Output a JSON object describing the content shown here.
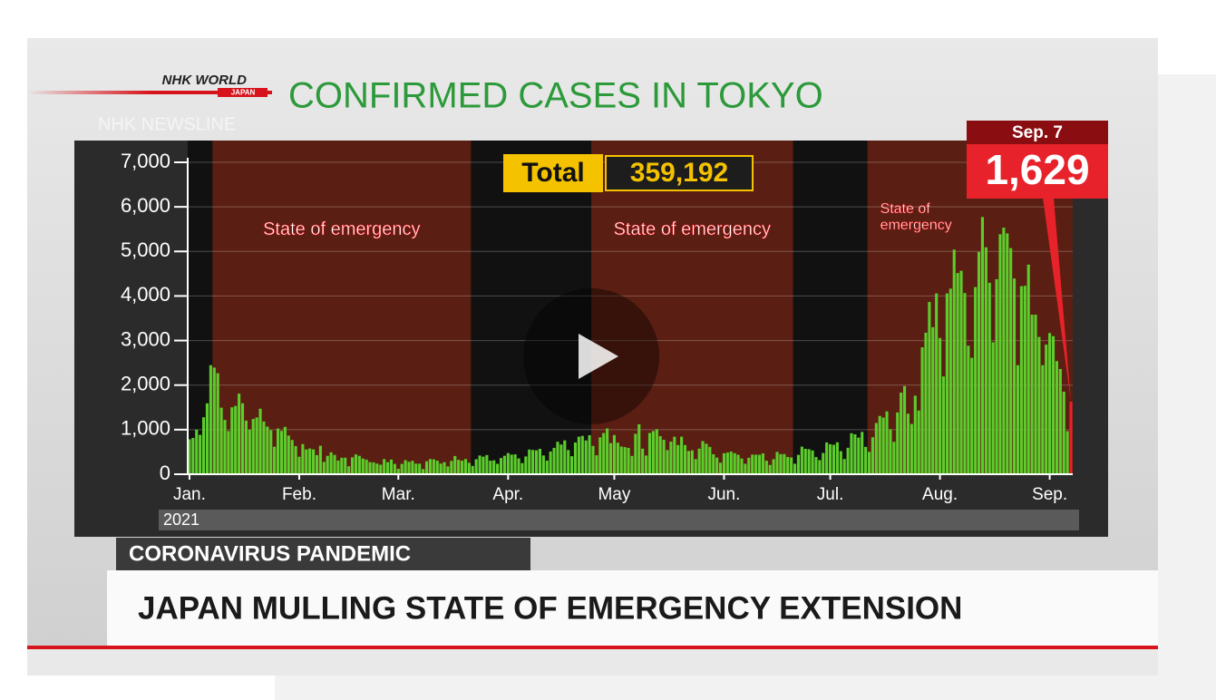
{
  "header": {
    "brand": "NHK WORLD",
    "brand_sub": "JAPAN",
    "program": "NHK NEWSLINE"
  },
  "chart_data": {
    "type": "bar",
    "title": "CONFIRMED CASES IN TOKYO",
    "year_label": "2021",
    "total_label": "Total",
    "total_value": "359,192",
    "callout": {
      "date": "Sep. 7",
      "value_label": "1,629",
      "color": "#e8222a"
    },
    "color": "#5ccd2c",
    "ylim": [
      0,
      7000
    ],
    "yticks": [
      0,
      {
        "value": 1000,
        "label": "1,000"
      },
      {
        "value": 2000,
        "label": "2,000"
      },
      {
        "value": 3000,
        "label": "3,000"
      },
      {
        "value": 4000,
        "label": "4,000"
      },
      {
        "value": 5000,
        "label": "5,000"
      },
      {
        "value": 6000,
        "label": "6,000"
      },
      {
        "value": 7000,
        "label": "7,000"
      }
    ],
    "grid": true,
    "bands": [
      {
        "start": 7,
        "end": 80,
        "label": "State of emergency"
      },
      {
        "start": 114,
        "end": 171,
        "label": "State of emergency"
      },
      {
        "start": 192,
        "end": 250,
        "label": "State of\nemergency"
      }
    ],
    "categories": [
      "Jan.",
      null,
      null,
      null,
      null,
      null,
      null,
      null,
      null,
      null,
      null,
      null,
      null,
      null,
      null,
      null,
      null,
      null,
      null,
      null,
      null,
      null,
      null,
      null,
      null,
      null,
      null,
      null,
      null,
      null,
      null,
      "Feb.",
      null,
      null,
      null,
      null,
      null,
      null,
      null,
      null,
      null,
      null,
      null,
      null,
      null,
      null,
      null,
      null,
      null,
      null,
      null,
      null,
      null,
      null,
      null,
      null,
      null,
      null,
      null,
      "Mar.",
      null,
      null,
      null,
      null,
      null,
      null,
      null,
      null,
      null,
      null,
      null,
      null,
      null,
      null,
      null,
      null,
      null,
      null,
      null,
      null,
      null,
      null,
      null,
      null,
      null,
      null,
      null,
      null,
      null,
      null,
      "Apr.",
      null,
      null,
      null,
      null,
      null,
      null,
      null,
      null,
      null,
      null,
      null,
      null,
      null,
      null,
      null,
      null,
      null,
      null,
      null,
      null,
      null,
      null,
      null,
      null,
      null,
      null,
      null,
      null,
      null,
      "May",
      null,
      null,
      null,
      null,
      null,
      null,
      null,
      null,
      null,
      null,
      null,
      null,
      null,
      null,
      null,
      null,
      null,
      null,
      null,
      null,
      null,
      null,
      null,
      null,
      null,
      null,
      null,
      null,
      null,
      null,
      "Jun.",
      null,
      null,
      null,
      null,
      null,
      null,
      null,
      null,
      null,
      null,
      null,
      null,
      null,
      null,
      null,
      null,
      null,
      null,
      null,
      null,
      null,
      null,
      null,
      null,
      null,
      null,
      null,
      null,
      null,
      "Jul.",
      null,
      null,
      null,
      null,
      null,
      null,
      null,
      null,
      null,
      null,
      null,
      null,
      null,
      null,
      null,
      null,
      null,
      null,
      null,
      null,
      null,
      null,
      null,
      null,
      null,
      null,
      null,
      null,
      null,
      null,
      "Aug.",
      null,
      null,
      null,
      null,
      null,
      null,
      null,
      null,
      null,
      null,
      null,
      null,
      null,
      null,
      null,
      null,
      null,
      null,
      null,
      null,
      null,
      null,
      null,
      null,
      null,
      null,
      null,
      null,
      null,
      null,
      "Sep.",
      null,
      null,
      null,
      null,
      null,
      null
    ],
    "values": [
      783,
      814,
      1000,
      884,
      1278,
      1591,
      2447,
      2392,
      2268,
      1494,
      1219,
      970,
      1502,
      1533,
      1809,
      1592,
      1204,
      1000,
      1240,
      1274,
      1471,
      1184,
      1070,
      986,
      618,
      1026,
      973,
      1064,
      868,
      769,
      633,
      393,
      676,
      556,
      577,
      557,
      429,
      639,
      276,
      412,
      491,
      434,
      307,
      369,
      371,
      178,
      378,
      445,
      413,
      352,
      327,
      272,
      266,
      238,
      213,
      340,
      270,
      329,
      232,
      121,
      232,
      316,
      279,
      301,
      237,
      237,
      116,
      290,
      340,
      335,
      304,
      239,
      271,
      175,
      300,
      409,
      323,
      303,
      342,
      256,
      187,
      337,
      420,
      394,
      430,
      304,
      313,
      234,
      364,
      414,
      475,
      440,
      446,
      355,
      249,
      399,
      555,
      545,
      537,
      570,
      421,
      306,
      510,
      591,
      729,
      667,
      759,
      543,
      405,
      712,
      843,
      861,
      759,
      876,
      635,
      425,
      828,
      925,
      1027,
      698,
      879,
      708,
      621,
      609,
      591,
      411,
      907,
      1121,
      573,
      419,
      925,
      969,
      1010,
      854,
      772,
      542,
      732,
      843,
      655,
      843,
      654,
      521,
      536,
      340,
      574,
      743,
      684,
      614,
      449,
      374,
      258,
      471,
      487,
      508,
      472,
      436,
      351,
      235,
      369,
      440,
      439,
      436,
      467,
      304,
      209,
      337,
      501,
      452,
      453,
      388,
      376,
      236,
      435,
      619,
      570,
      562,
      534,
      386,
      317,
      476,
      714,
      673,
      660,
      716,
      518,
      342,
      593,
      920,
      896,
      822,
      950,
      614,
      502,
      830,
      1149,
      1308,
      1271,
      1410,
      1008,
      727,
      1387,
      1832,
      1979,
      1359,
      1128,
      1763,
      1429,
      2848,
      3177,
      3865,
      3300,
      4058,
      3058,
      2195,
      4058,
      4166,
      5042,
      4515,
      4566,
      4066,
      2884,
      2612,
      4200,
      4989,
      5773,
      5094,
      4295,
      2962,
      4377,
      5386,
      5534,
      5405,
      5074,
      4392,
      2447,
      4220,
      4228,
      4704,
      3581,
      3581,
      3081,
      2447,
      2909,
      3168,
      3099,
      2539,
      2362,
      1853,
      968,
      1629
    ]
  },
  "lower_third": {
    "tag": "CORONAVIRUS PANDEMIC",
    "headline": "JAPAN MULLING STATE OF EMERGENCY EXTENSION"
  }
}
